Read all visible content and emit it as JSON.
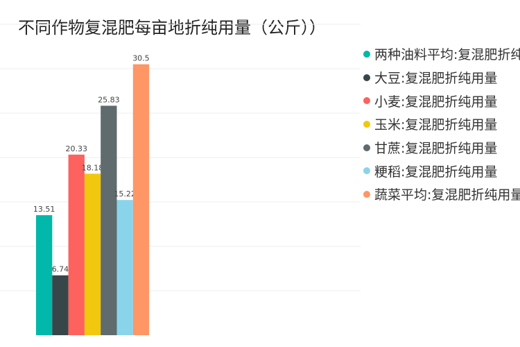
{
  "chart_data": {
    "type": "bar",
    "title": "不同作物复混肥每亩地折纯用量（公斤））",
    "xlabel": "",
    "ylabel": "",
    "ylim": [
      0,
      35
    ],
    "grid": true,
    "legend_position": "right",
    "series": [
      {
        "name": "两种油料平均:复混肥折纯用量",
        "color": "#01B8AA",
        "value": 13.51,
        "label": "13.51"
      },
      {
        "name": "大豆:复混肥折纯用量",
        "color": "#374649",
        "value": 6.74,
        "label": "6.74"
      },
      {
        "name": "小麦:复混肥折纯用量",
        "color": "#FD625E",
        "value": 20.33,
        "label": "20.33"
      },
      {
        "name": "玉米:复混肥折纯用量",
        "color": "#F2C80F",
        "value": 18.18,
        "label": "18.18"
      },
      {
        "name": "甘蔗:复混肥折纯用量",
        "color": "#5F6B6D",
        "value": 25.83,
        "label": "25.83"
      },
      {
        "name": "粳稻:复混肥折纯用量",
        "color": "#8AD4EB",
        "value": 15.22,
        "label": "15.22"
      },
      {
        "name": "蔬菜平均:复混肥折纯用量",
        "color": "#FE9666",
        "value": 30.5,
        "label": "30.5"
      }
    ]
  }
}
